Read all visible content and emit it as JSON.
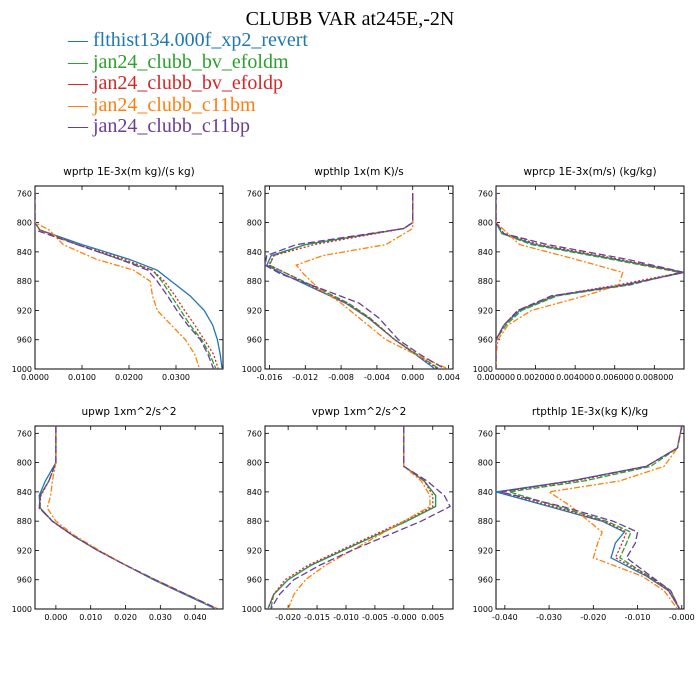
{
  "title": "CLUBB VAR at245E,-2N",
  "series": [
    {
      "name": "flthist134.000f_xp2_revert",
      "color": "#1f77b4",
      "dash": ""
    },
    {
      "name": "jan24_clubb_bv_efoldm",
      "color": "#2ca02c",
      "dash": "6,2"
    },
    {
      "name": "jan24_clubb_bv_efoldp",
      "color": "#d62728",
      "dash": "2,2"
    },
    {
      "name": "jan24_clubb_c11bm",
      "color": "#ff7f0e",
      "dash": "6,2,2,2"
    },
    {
      "name": "jan24_clubb_c11bp",
      "color": "#6a3d9a",
      "dash": "7,3"
    }
  ],
  "chart_data": [
    {
      "type": "line",
      "title": "wprtp  1E-3x(m kg)/(s kg)",
      "xlim": [
        0.0,
        0.04
      ],
      "ylim": [
        1000,
        750
      ],
      "xticks": [
        0.0,
        0.01,
        0.02,
        0.03
      ],
      "xtick_labels": [
        "0.0000",
        "0.0100",
        "0.0200",
        "0.0300"
      ],
      "yticks": [
        760,
        800,
        840,
        880,
        920,
        960,
        1000
      ],
      "ytick_labels": [
        "760",
        "800",
        "840",
        "880",
        "920",
        "960",
        "1000"
      ],
      "y": [
        760,
        800,
        810,
        830,
        850,
        865,
        880,
        900,
        920,
        940,
        960,
        980,
        1000
      ],
      "series": [
        {
          "x": [
            0.0,
            0.0,
            0.001,
            0.01,
            0.02,
            0.026,
            0.029,
            0.033,
            0.036,
            0.0378,
            0.0388,
            0.0394,
            0.0398
          ]
        },
        {
          "x": [
            0.0,
            0.0,
            0.001,
            0.009,
            0.018,
            0.025,
            0.027,
            0.029,
            0.031,
            0.033,
            0.0355,
            0.0372,
            0.0385
          ]
        },
        {
          "x": [
            0.0,
            0.0,
            0.001,
            0.009,
            0.019,
            0.025,
            0.0275,
            0.0298,
            0.0318,
            0.034,
            0.036,
            0.038,
            0.039
          ]
        },
        {
          "x": [
            0.0,
            0.0,
            0.003,
            0.006,
            0.013,
            0.021,
            0.0245,
            0.025,
            0.026,
            0.029,
            0.032,
            0.034,
            0.035
          ]
        },
        {
          "x": [
            0.0,
            0.0,
            0.0,
            0.009,
            0.018,
            0.024,
            0.026,
            0.0282,
            0.0302,
            0.0325,
            0.0352,
            0.0368,
            0.038
          ]
        }
      ]
    },
    {
      "type": "line",
      "title": "wpthlp  1x(m K)/s",
      "xlim": [
        -0.0165,
        0.0045
      ],
      "ylim": [
        1000,
        750
      ],
      "xticks": [
        -0.016,
        -0.012,
        -0.008,
        -0.004,
        0.0,
        0.004
      ],
      "xtick_labels": [
        "-0.016",
        "-0.012",
        "-0.008",
        "-0.004",
        "0.000",
        "0.004"
      ],
      "yticks": [
        760,
        800,
        840,
        880,
        920,
        960,
        1000
      ],
      "ytick_labels": [
        "760",
        "800",
        "840",
        "880",
        "920",
        "960",
        "1000"
      ],
      "y": [
        760,
        800,
        808,
        830,
        845,
        858,
        870,
        890,
        910,
        930,
        960,
        980,
        1000
      ],
      "series": [
        {
          "x": [
            0.0,
            0.0,
            -0.001,
            -0.012,
            -0.0158,
            -0.0163,
            -0.0145,
            -0.011,
            -0.0075,
            -0.005,
            -0.002,
            0.0003,
            0.0025
          ]
        },
        {
          "x": [
            0.0,
            0.0,
            -0.001,
            -0.012,
            -0.0155,
            -0.016,
            -0.014,
            -0.0105,
            -0.0072,
            -0.0048,
            -0.002,
            0.0005,
            0.003
          ]
        },
        {
          "x": [
            0.0,
            0.0,
            -0.001,
            -0.011,
            -0.0155,
            -0.0161,
            -0.014,
            -0.0108,
            -0.0074,
            -0.0049,
            -0.002,
            0.0004,
            0.0028
          ]
        },
        {
          "x": [
            0.0,
            0.0,
            0.0,
            -0.003,
            -0.01,
            -0.013,
            -0.0122,
            -0.0105,
            -0.008,
            -0.006,
            -0.003,
            0.0003,
            0.004
          ]
        },
        {
          "x": [
            0.0,
            0.0,
            -0.001,
            -0.013,
            -0.0163,
            -0.0165,
            -0.0148,
            -0.0103,
            -0.006,
            -0.0038,
            -0.0016,
            0.0008,
            0.0036
          ]
        }
      ]
    },
    {
      "type": "line",
      "title": "wprcp  1E-3x(m/s) (kg/kg)",
      "xlim": [
        0.0,
        0.0095
      ],
      "ylim": [
        1000,
        750
      ],
      "xticks": [
        0.0,
        0.002,
        0.004,
        0.006,
        0.008
      ],
      "xtick_labels": [
        "0.000000",
        "0.002000",
        "0.004000",
        "0.006000",
        "0.008000"
      ],
      "yticks": [
        760,
        800,
        840,
        880,
        920,
        960,
        1000
      ],
      "ytick_labels": [
        "760",
        "800",
        "840",
        "880",
        "920",
        "960",
        "1000"
      ],
      "y": [
        760,
        800,
        815,
        830,
        850,
        868,
        885,
        900,
        920,
        940,
        960,
        980,
        1000
      ],
      "series": [
        {
          "x": [
            0.0,
            0.0,
            0.0003,
            0.002,
            0.006,
            0.0095,
            0.0065,
            0.003,
            0.0012,
            0.0004,
            0.0,
            0.0,
            0.0
          ]
        },
        {
          "x": [
            0.0,
            0.0,
            0.0003,
            0.0018,
            0.0058,
            0.0093,
            0.0068,
            0.0031,
            0.0013,
            0.0005,
            0.0,
            0.0,
            0.0
          ]
        },
        {
          "x": [
            0.0,
            0.0,
            0.0004,
            0.0022,
            0.0062,
            0.0094,
            0.0062,
            0.0029,
            0.0011,
            0.0004,
            0.0,
            0.0,
            0.0
          ]
        },
        {
          "x": [
            0.0,
            0.0,
            0.0006,
            0.0012,
            0.004,
            0.0064,
            0.0062,
            0.0045,
            0.0018,
            0.0006,
            0.0001,
            0.0,
            0.0
          ]
        },
        {
          "x": [
            0.0,
            0.0,
            0.0004,
            0.0026,
            0.0066,
            0.0095,
            0.0066,
            0.0028,
            0.0011,
            0.0004,
            0.0,
            0.0,
            0.0
          ]
        }
      ]
    },
    {
      "type": "line",
      "title": "upwp  1xm^2/s^2",
      "xlim": [
        -0.006,
        0.048
      ],
      "ylim": [
        1000,
        750
      ],
      "xticks": [
        0.0,
        0.01,
        0.02,
        0.03,
        0.04
      ],
      "xtick_labels": [
        "0.000",
        "0.010",
        "0.020",
        "0.030",
        "0.040"
      ],
      "yticks": [
        760,
        800,
        840,
        880,
        920,
        960,
        1000
      ],
      "ytick_labels": [
        "760",
        "800",
        "840",
        "880",
        "920",
        "960",
        "1000"
      ],
      "y": [
        750,
        800,
        825,
        845,
        862,
        880,
        900,
        920,
        940,
        960,
        980,
        1000
      ],
      "series": [
        {
          "x": [
            0.0,
            0.0,
            -0.003,
            -0.0048,
            -0.0045,
            -0.001,
            0.005,
            0.012,
            0.02,
            0.028,
            0.037,
            0.046
          ]
        },
        {
          "x": [
            0.0,
            0.0,
            -0.002,
            -0.0045,
            -0.0045,
            -0.001,
            0.005,
            0.012,
            0.02,
            0.0285,
            0.0375,
            0.0465
          ]
        },
        {
          "x": [
            0.0,
            0.0,
            -0.002,
            -0.0043,
            -0.0047,
            -0.001,
            0.005,
            0.012,
            0.02,
            0.0285,
            0.0375,
            0.0465
          ]
        },
        {
          "x": [
            0.0,
            0.0,
            -0.001,
            -0.0015,
            -0.0025,
            0.0,
            0.0055,
            0.0125,
            0.02,
            0.0285,
            0.0375,
            0.0465
          ]
        },
        {
          "x": [
            0.0,
            0.0,
            -0.002,
            -0.0045,
            -0.0048,
            -0.001,
            0.005,
            0.012,
            0.02,
            0.0285,
            0.0375,
            0.0465
          ]
        }
      ]
    },
    {
      "type": "line",
      "title": "vpwp  1xm^2/s^2",
      "xlim": [
        -0.024,
        0.0085
      ],
      "ylim": [
        1000,
        750
      ],
      "xticks": [
        -0.02,
        -0.015,
        -0.01,
        -0.005,
        0.0,
        0.005
      ],
      "xtick_labels": [
        "-0.020",
        "-0.015",
        "-0.010",
        "-0.005",
        "-0.000",
        "0.005"
      ],
      "yticks": [
        760,
        800,
        840,
        880,
        920,
        960,
        1000
      ],
      "ytick_labels": [
        "760",
        "800",
        "840",
        "880",
        "920",
        "960",
        "1000"
      ],
      "y": [
        750,
        805,
        825,
        845,
        860,
        880,
        900,
        920,
        940,
        960,
        980,
        1000
      ],
      "series": [
        {
          "x": [
            0.0,
            0.0,
            0.0035,
            0.0055,
            0.0055,
            0.0005,
            -0.005,
            -0.0105,
            -0.016,
            -0.02,
            -0.0225,
            -0.0235
          ]
        },
        {
          "x": [
            0.0,
            0.0,
            0.0035,
            0.0055,
            0.0055,
            0.0005,
            -0.005,
            -0.0105,
            -0.016,
            -0.02,
            -0.0225,
            -0.023
          ]
        },
        {
          "x": [
            0.0,
            0.0,
            0.0035,
            0.005,
            0.005,
            0.0,
            -0.0055,
            -0.011,
            -0.0165,
            -0.0205,
            -0.0225,
            -0.0235
          ]
        },
        {
          "x": [
            0.0,
            0.0,
            0.003,
            0.0045,
            0.0045,
            0.0,
            -0.0045,
            -0.009,
            -0.0135,
            -0.017,
            -0.019,
            -0.02
          ]
        },
        {
          "x": [
            0.0,
            0.0,
            0.004,
            0.007,
            0.008,
            0.003,
            -0.003,
            -0.009,
            -0.0145,
            -0.019,
            -0.0215,
            -0.023
          ]
        }
      ]
    },
    {
      "type": "line",
      "title": "rtpthlp  1E-3x(kg K)/kg",
      "xlim": [
        -0.042,
        0.0005
      ],
      "ylim": [
        1000,
        750
      ],
      "xticks": [
        -0.04,
        -0.03,
        -0.02,
        -0.01,
        0.0
      ],
      "xtick_labels": [
        "-0.040",
        "-0.030",
        "-0.020",
        "-0.010",
        "-0.000"
      ],
      "yticks": [
        760,
        800,
        840,
        880,
        920,
        960,
        1000
      ],
      "ytick_labels": [
        "760",
        "800",
        "840",
        "880",
        "920",
        "960",
        "1000"
      ],
      "y": [
        750,
        780,
        805,
        825,
        840,
        860,
        880,
        895,
        910,
        930,
        955,
        975,
        1000
      ],
      "series": [
        {
          "x": [
            0.0,
            -0.001,
            -0.008,
            -0.025,
            -0.042,
            -0.03,
            -0.018,
            -0.013,
            -0.015,
            -0.016,
            -0.008,
            -0.003,
            -0.0005
          ]
        },
        {
          "x": [
            0.0,
            -0.001,
            -0.007,
            -0.022,
            -0.039,
            -0.028,
            -0.017,
            -0.0115,
            -0.0125,
            -0.014,
            -0.0075,
            -0.0025,
            -0.0005
          ]
        },
        {
          "x": [
            0.0,
            -0.001,
            -0.008,
            -0.024,
            -0.041,
            -0.029,
            -0.0175,
            -0.0125,
            -0.0135,
            -0.015,
            -0.0075,
            -0.003,
            -0.0005
          ]
        },
        {
          "x": [
            0.0,
            -0.001,
            -0.004,
            -0.014,
            -0.03,
            -0.025,
            -0.021,
            -0.018,
            -0.019,
            -0.02,
            -0.009,
            -0.004,
            -0.001
          ]
        },
        {
          "x": [
            0.0,
            -0.001,
            -0.008,
            -0.025,
            -0.041,
            -0.027,
            -0.0155,
            -0.01,
            -0.0105,
            -0.0125,
            -0.007,
            -0.0025,
            -0.0005
          ]
        }
      ]
    }
  ]
}
